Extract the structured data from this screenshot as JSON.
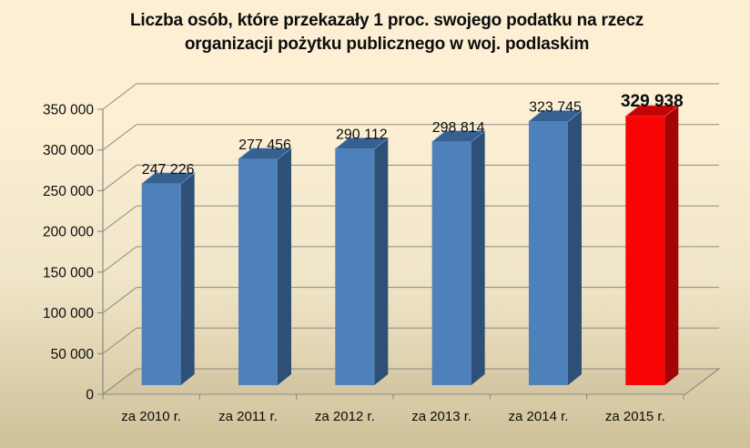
{
  "title": {
    "line1": "Liczba osób, które przekazały 1 proc. swojego podatku na rzecz",
    "line2": "organizacji pożytku publicznego w woj. podlaskim"
  },
  "chart_data": {
    "type": "bar",
    "variant": "3d-column",
    "title": "Liczba osób, które przekazały 1 proc. swojego podatku na rzecz organizacji pożytku publicznego w woj. podlaskim",
    "categories": [
      "za 2010 r.",
      "za 2011 r.",
      "za 2012 r.",
      "za 2013 r.",
      "za 2014 r.",
      "za 2015 r."
    ],
    "values": [
      247226,
      277456,
      290112,
      298814,
      323745,
      329938
    ],
    "value_labels": [
      "247 226",
      "277 456",
      "290 112",
      "298 814",
      "323 745",
      "329 938"
    ],
    "highlight_index": 5,
    "xlabel": "",
    "ylabel": "",
    "ylim": [
      0,
      350000
    ],
    "y_tick_labels": [
      "0",
      "50 000",
      "100 000",
      "150 000",
      "200 000",
      "250 000",
      "300 000",
      "350 000"
    ],
    "y_tick_values": [
      0,
      50000,
      100000,
      150000,
      200000,
      250000,
      300000,
      350000
    ],
    "grid": true,
    "legend": "none",
    "colors": {
      "bar": {
        "front": "#4E80BC",
        "side": "#2E5077",
        "top": "#35608F",
        "bevel": "#6C96C8"
      },
      "bar_highlight": {
        "front": "#F90404",
        "side": "#A30404",
        "top": "#C40404",
        "bevel": "#FF5454"
      },
      "grid": "#8A8A82",
      "axis": "#8A8A82",
      "text": "#0D0D0D",
      "background_top": "#FCEFD4",
      "background_mid": "#F0E5C8",
      "background_bottom": "#CEC199"
    }
  }
}
